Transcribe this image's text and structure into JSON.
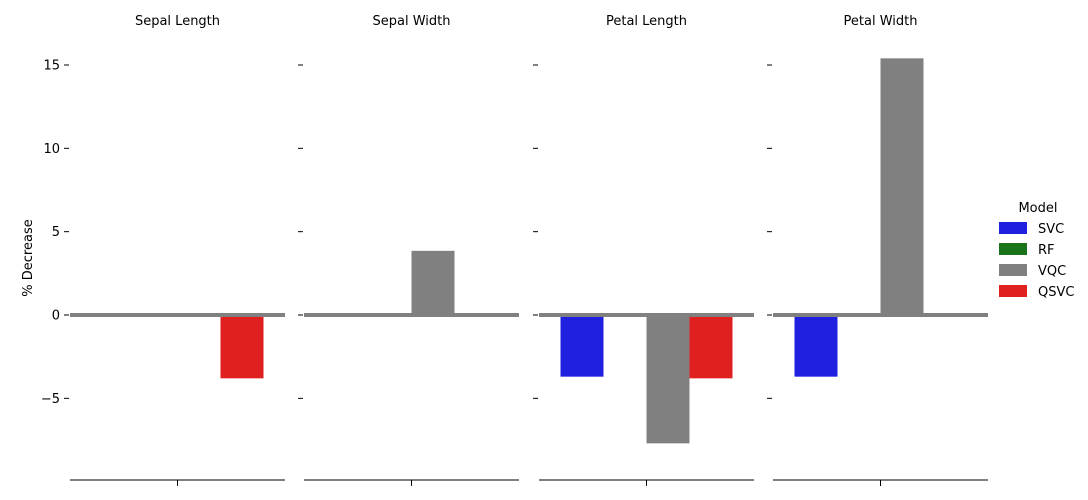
{
  "chart_data": {
    "type": "bar",
    "facets": [
      "Sepal Length",
      "Sepal Width",
      "Petal Length",
      "Petal Width"
    ],
    "ylabel": "% Decrease",
    "ylim": [
      -8.7,
      16.5
    ],
    "yticks": [
      15,
      10,
      5,
      0,
      -5
    ],
    "ytick_labels": [
      "15",
      "10",
      "5",
      "0",
      "−5"
    ],
    "legend": {
      "title": "Model",
      "placement": "right"
    },
    "series": [
      {
        "name": "SVC",
        "color": "#2020e0",
        "values": [
          0,
          0,
          -3.7,
          -3.7
        ]
      },
      {
        "name": "RF",
        "color": "#1a741a",
        "values": [
          0,
          0,
          0,
          0
        ]
      },
      {
        "name": "VQC",
        "color": "#808080",
        "values": [
          0,
          3.85,
          -7.7,
          15.4
        ]
      },
      {
        "name": "QSVC",
        "color": "#e01f1f",
        "values": [
          -3.8,
          0,
          -3.8,
          0
        ]
      }
    ],
    "zero_line_color": "#808080",
    "grid": false
  }
}
